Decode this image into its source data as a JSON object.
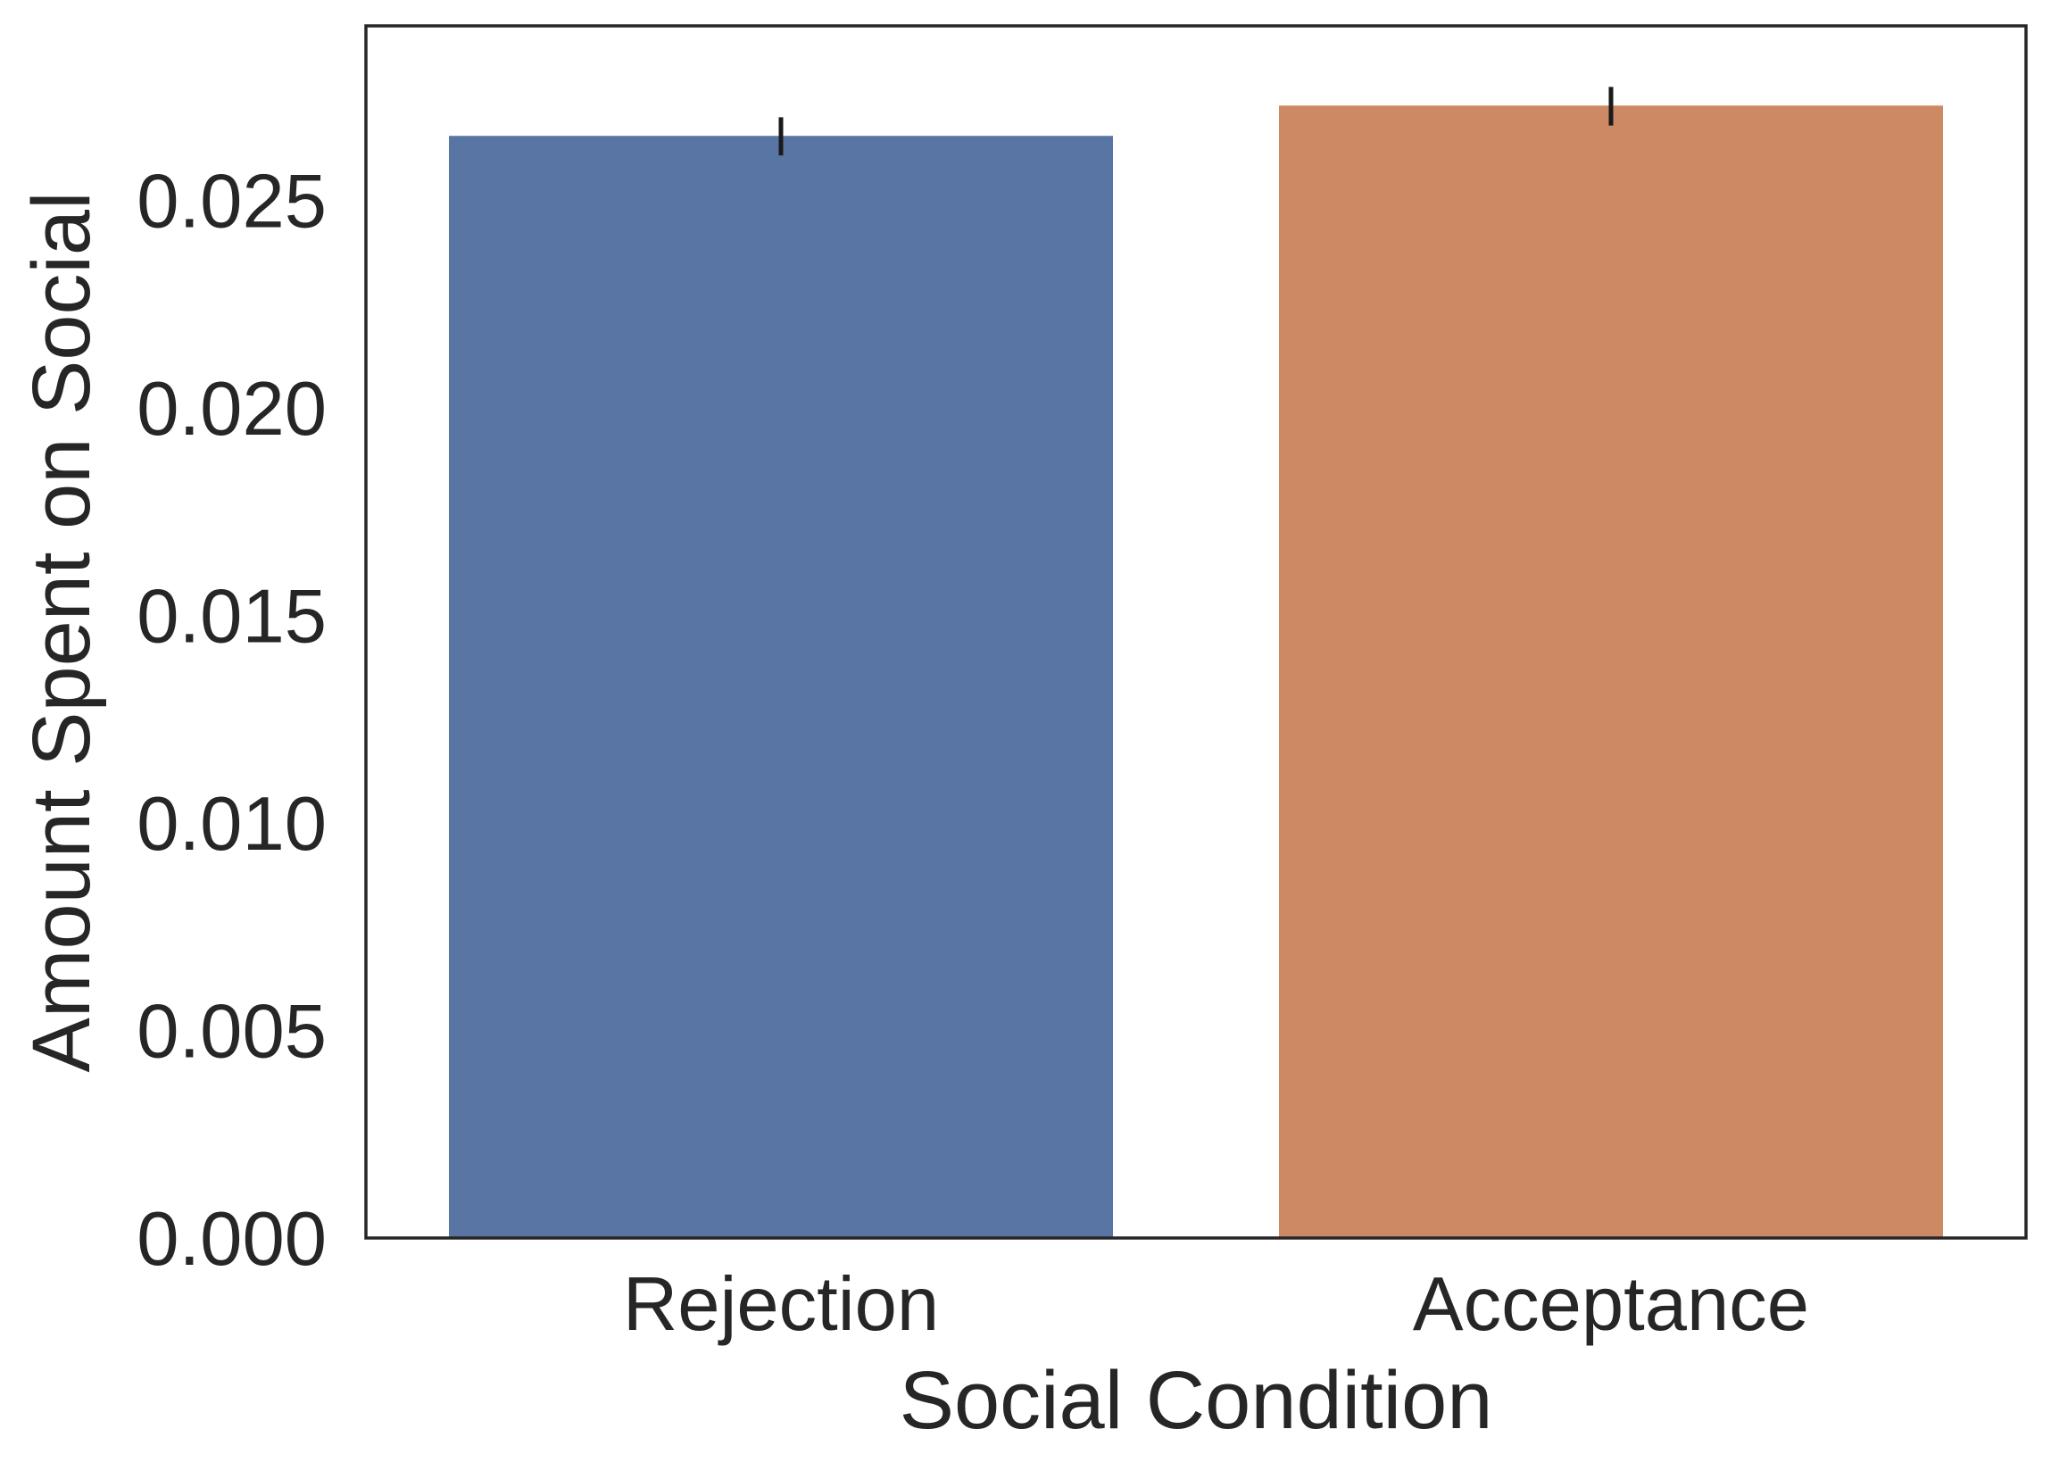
{
  "chart_data": {
    "type": "bar",
    "categories": [
      "Rejection",
      "Acceptance"
    ],
    "values": [
      0.02655,
      0.02728
    ],
    "error_bars": [
      {
        "low": 0.02608,
        "high": 0.027
      },
      {
        "low": 0.0268,
        "high": 0.02773
      }
    ],
    "colors": [
      "#5975a4",
      "#cc8963"
    ],
    "xlabel": "Social Condition",
    "ylabel": "Amount Spent on Social",
    "ylim": [
      0,
      0.0292
    ],
    "yticks": [
      0.0,
      0.005,
      0.01,
      0.015,
      0.02,
      0.025
    ],
    "ytick_labels": [
      "0.000",
      "0.005",
      "0.010",
      "0.015",
      "0.020",
      "0.025"
    ],
    "grid": false,
    "legend": "none"
  }
}
